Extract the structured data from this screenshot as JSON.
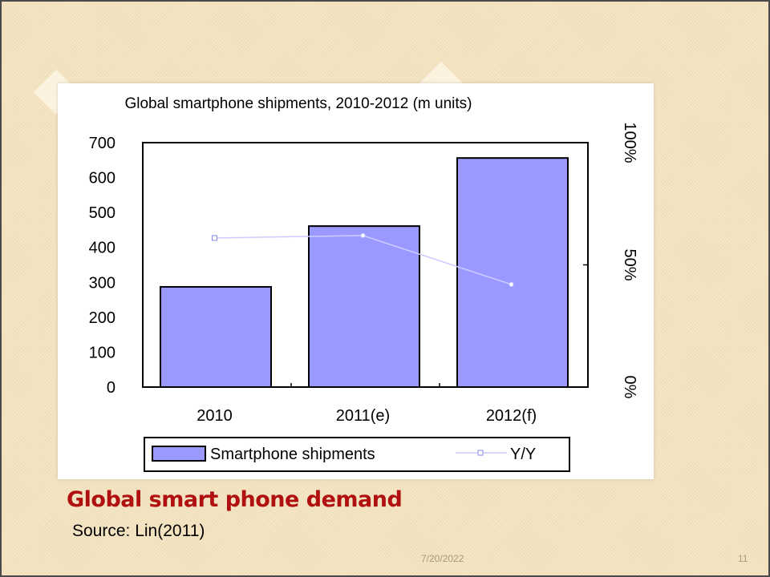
{
  "slide": {
    "caption": "Global smart phone demand",
    "source": "Source: Lin(2011)",
    "date": "7/20/2022",
    "page_number": "11"
  },
  "colors": {
    "bar": "#9999ff",
    "line": "#ccccff",
    "caption": "#b01010"
  },
  "chart_data": {
    "type": "bar",
    "title": "Global smartphone shipments, 2010-2012 (m units)",
    "categories": [
      "2010",
      "2011(e)",
      "2012(f)"
    ],
    "series": [
      {
        "name": "Smartphone shipments",
        "type": "bar",
        "axis": "left",
        "values": [
          287,
          461,
          656
        ]
      },
      {
        "name": "Y/Y",
        "type": "line",
        "axis": "right",
        "values": [
          61,
          62,
          42
        ]
      }
    ],
    "ylim": [
      0,
      700
    ],
    "yticks": [
      "0",
      "100",
      "200",
      "300",
      "400",
      "500",
      "600",
      "700"
    ],
    "y2lim": [
      0,
      100
    ],
    "y2ticks": [
      "0%",
      "50%",
      "100%"
    ],
    "grid": false,
    "legend": "bottom"
  }
}
